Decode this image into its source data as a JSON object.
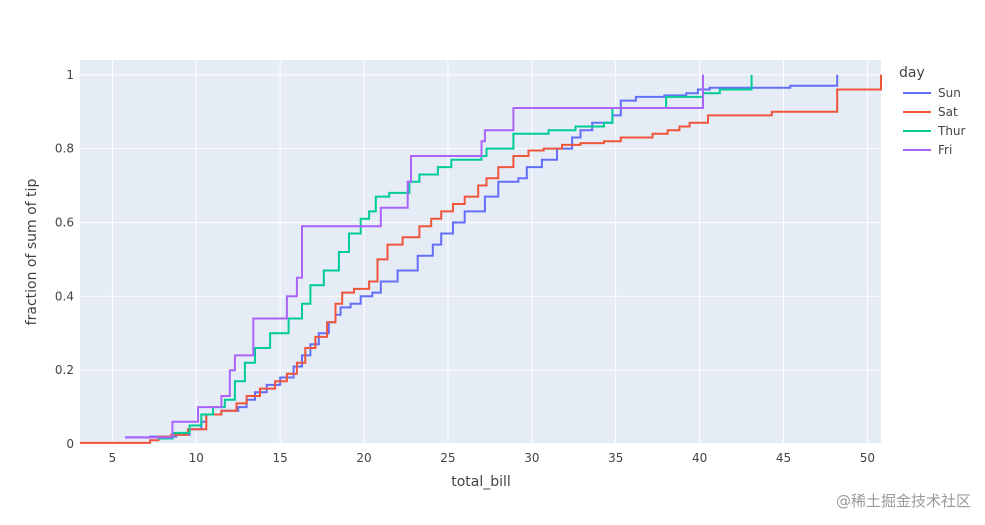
{
  "chart_data": {
    "type": "line",
    "line_shape": "step",
    "xlabel": "total_bill",
    "ylabel": "fraction of sum of tip",
    "xlim": [
      3.07,
      50.81
    ],
    "ylim": [
      0,
      1.04
    ],
    "x_ticks": [
      5,
      10,
      15,
      20,
      25,
      30,
      35,
      40,
      45,
      50
    ],
    "y_ticks": [
      0,
      0.2,
      0.4,
      0.6,
      0.8,
      1
    ],
    "grid": true,
    "legend_title": "day",
    "legend_position": "top-right",
    "series": [
      {
        "name": "Sun",
        "color": "#636efa",
        "x": [
          5.75,
          7.25,
          8.8,
          9.6,
          10.3,
          10.6,
          11.5,
          12.5,
          13.0,
          13.5,
          14.2,
          15.0,
          15.8,
          16.3,
          16.8,
          17.3,
          17.9,
          18.3,
          18.6,
          19.2,
          19.8,
          20.5,
          21.0,
          22.0,
          23.2,
          24.1,
          24.6,
          25.3,
          26.0,
          27.2,
          28.0,
          29.2,
          29.7,
          30.6,
          31.5,
          32.4,
          32.9,
          33.6,
          34.8,
          35.3,
          36.2,
          37.9,
          39.2,
          39.9,
          40.6,
          41.3,
          45.4,
          48.2,
          48.2
        ],
        "y": [
          0.018,
          0.02,
          0.025,
          0.04,
          0.06,
          0.08,
          0.09,
          0.1,
          0.12,
          0.14,
          0.16,
          0.18,
          0.21,
          0.24,
          0.27,
          0.3,
          0.33,
          0.35,
          0.37,
          0.38,
          0.4,
          0.41,
          0.44,
          0.47,
          0.51,
          0.54,
          0.57,
          0.6,
          0.63,
          0.67,
          0.71,
          0.72,
          0.75,
          0.77,
          0.8,
          0.83,
          0.85,
          0.87,
          0.89,
          0.93,
          0.94,
          0.944,
          0.95,
          0.96,
          0.965,
          0.965,
          0.97,
          0.98,
          1.0
        ]
      },
      {
        "name": "Sat",
        "color": "#ef553b",
        "x": [
          3.07,
          7.25,
          7.74,
          8.5,
          9.5,
          10.6,
          11.5,
          12.4,
          13.0,
          13.8,
          14.7,
          15.4,
          16.0,
          16.5,
          17.1,
          17.8,
          18.3,
          18.7,
          19.4,
          20.3,
          20.8,
          21.4,
          22.3,
          23.3,
          24.0,
          24.6,
          25.3,
          26.0,
          26.8,
          27.3,
          28.0,
          28.9,
          29.8,
          30.7,
          31.8,
          32.9,
          34.3,
          35.3,
          37.2,
          38.1,
          38.8,
          39.4,
          40.5,
          44.3,
          48.2,
          48.3,
          50.81
        ],
        "y": [
          0.003,
          0.01,
          0.02,
          0.025,
          0.04,
          0.08,
          0.09,
          0.11,
          0.13,
          0.15,
          0.17,
          0.19,
          0.22,
          0.26,
          0.29,
          0.33,
          0.38,
          0.41,
          0.42,
          0.44,
          0.5,
          0.54,
          0.56,
          0.59,
          0.61,
          0.63,
          0.65,
          0.67,
          0.7,
          0.72,
          0.75,
          0.78,
          0.795,
          0.8,
          0.81,
          0.815,
          0.82,
          0.83,
          0.84,
          0.85,
          0.86,
          0.87,
          0.89,
          0.9,
          0.96,
          0.96,
          1.0
        ]
      },
      {
        "name": "Thur",
        "color": "#00cc96",
        "x": [
          7.7,
          8.6,
          9.6,
          10.3,
          11.0,
          11.7,
          12.3,
          12.9,
          13.5,
          14.4,
          15.5,
          16.3,
          16.8,
          17.6,
          18.5,
          19.1,
          19.8,
          20.3,
          20.7,
          21.5,
          22.7,
          23.3,
          24.4,
          25.2,
          26.0,
          27.0,
          27.3,
          28.9,
          31.0,
          32.6,
          34.3,
          34.8,
          38.0,
          40.2,
          41.2,
          43.1,
          43.1
        ],
        "y": [
          0.015,
          0.03,
          0.05,
          0.08,
          0.1,
          0.12,
          0.17,
          0.22,
          0.26,
          0.3,
          0.34,
          0.38,
          0.43,
          0.47,
          0.52,
          0.57,
          0.61,
          0.63,
          0.67,
          0.68,
          0.71,
          0.73,
          0.75,
          0.77,
          0.77,
          0.78,
          0.8,
          0.84,
          0.85,
          0.86,
          0.87,
          0.91,
          0.94,
          0.95,
          0.96,
          0.97,
          1.0
        ]
      },
      {
        "name": "Fri",
        "color": "#ab63fa",
        "x": [
          5.75,
          8.58,
          10.1,
          11.5,
          12.0,
          12.3,
          13.4,
          15.4,
          16.0,
          16.3,
          21.0,
          22.6,
          22.8,
          27.0,
          27.2,
          28.9,
          34.6,
          40.2,
          40.2
        ],
        "y": [
          0.018,
          0.06,
          0.1,
          0.13,
          0.2,
          0.24,
          0.34,
          0.4,
          0.45,
          0.59,
          0.64,
          0.71,
          0.78,
          0.82,
          0.85,
          0.91,
          0.91,
          0.93,
          1.0
        ]
      }
    ]
  },
  "watermark": "@稀土掘金技术社区"
}
